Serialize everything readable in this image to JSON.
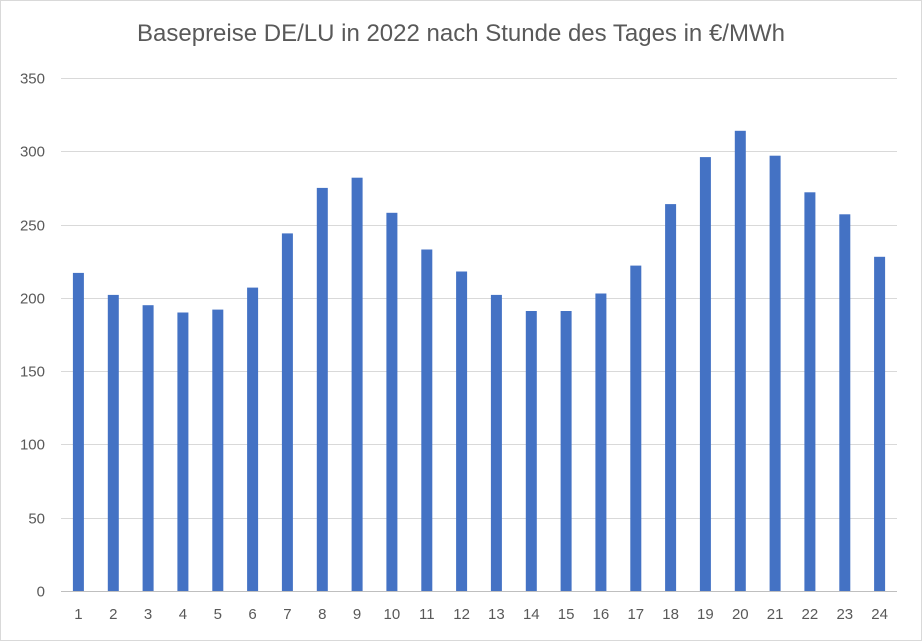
{
  "chart_data": {
    "type": "bar",
    "title": "Basepreise DE/LU in 2022 nach Stunde des Tages in €/MWh",
    "xlabel": "",
    "ylabel": "",
    "categories": [
      "1",
      "2",
      "3",
      "4",
      "5",
      "6",
      "7",
      "8",
      "9",
      "10",
      "11",
      "12",
      "13",
      "14",
      "15",
      "16",
      "17",
      "18",
      "19",
      "20",
      "21",
      "22",
      "23",
      "24"
    ],
    "values": [
      217,
      202,
      195,
      190,
      192,
      207,
      244,
      275,
      282,
      258,
      233,
      218,
      202,
      191,
      191,
      203,
      222,
      264,
      296,
      314,
      297,
      272,
      257,
      228
    ],
    "ylim": [
      0,
      350
    ],
    "yticks": [
      0,
      50,
      100,
      150,
      200,
      250,
      300,
      350
    ],
    "grid": true,
    "legend": "none",
    "bar_color": "#4472c4"
  }
}
